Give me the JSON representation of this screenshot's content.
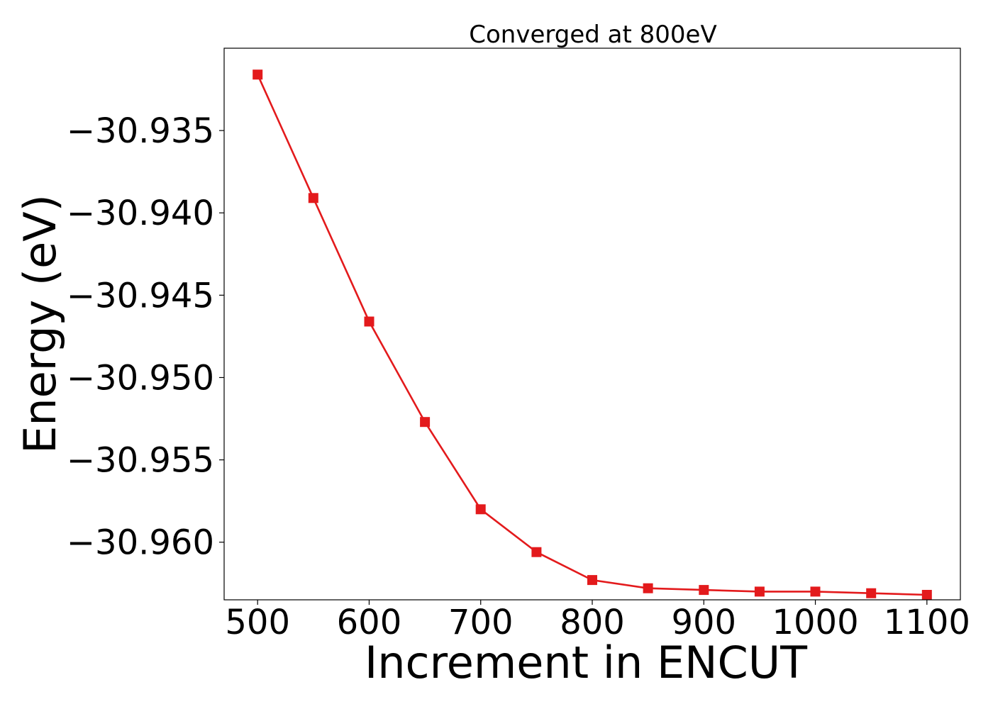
{
  "chart_data": {
    "type": "line",
    "title": "Converged at 800eV",
    "xlabel": "Increment in ENCUT",
    "ylabel": "Energy (eV)",
    "xlim": [
      470,
      1130
    ],
    "ylim": [
      -30.9635,
      -30.93
    ],
    "xticks": [
      500,
      600,
      700,
      800,
      900,
      1000,
      1100
    ],
    "xtick_labels": [
      "500",
      "600",
      "700",
      "800",
      "900",
      "1000",
      "1100"
    ],
    "yticks": [
      -30.935,
      -30.94,
      -30.945,
      -30.95,
      -30.955,
      -30.96
    ],
    "ytick_labels": [
      "−30.935",
      "−30.940",
      "−30.945",
      "−30.950",
      "−30.955",
      "−30.960"
    ],
    "grid": false,
    "color": "#e31a1c",
    "marker": "square",
    "series": [
      {
        "x": [
          500,
          550,
          600,
          650,
          700,
          750,
          800,
          850,
          900,
          950,
          1000,
          1050,
          1100
        ],
        "y": [
          -30.9316,
          -30.9391,
          -30.9466,
          -30.9527,
          -30.958,
          -30.9606,
          -30.9623,
          -30.9628,
          -30.9629,
          -30.963,
          -30.963,
          -30.9631,
          -30.9632
        ]
      }
    ]
  }
}
